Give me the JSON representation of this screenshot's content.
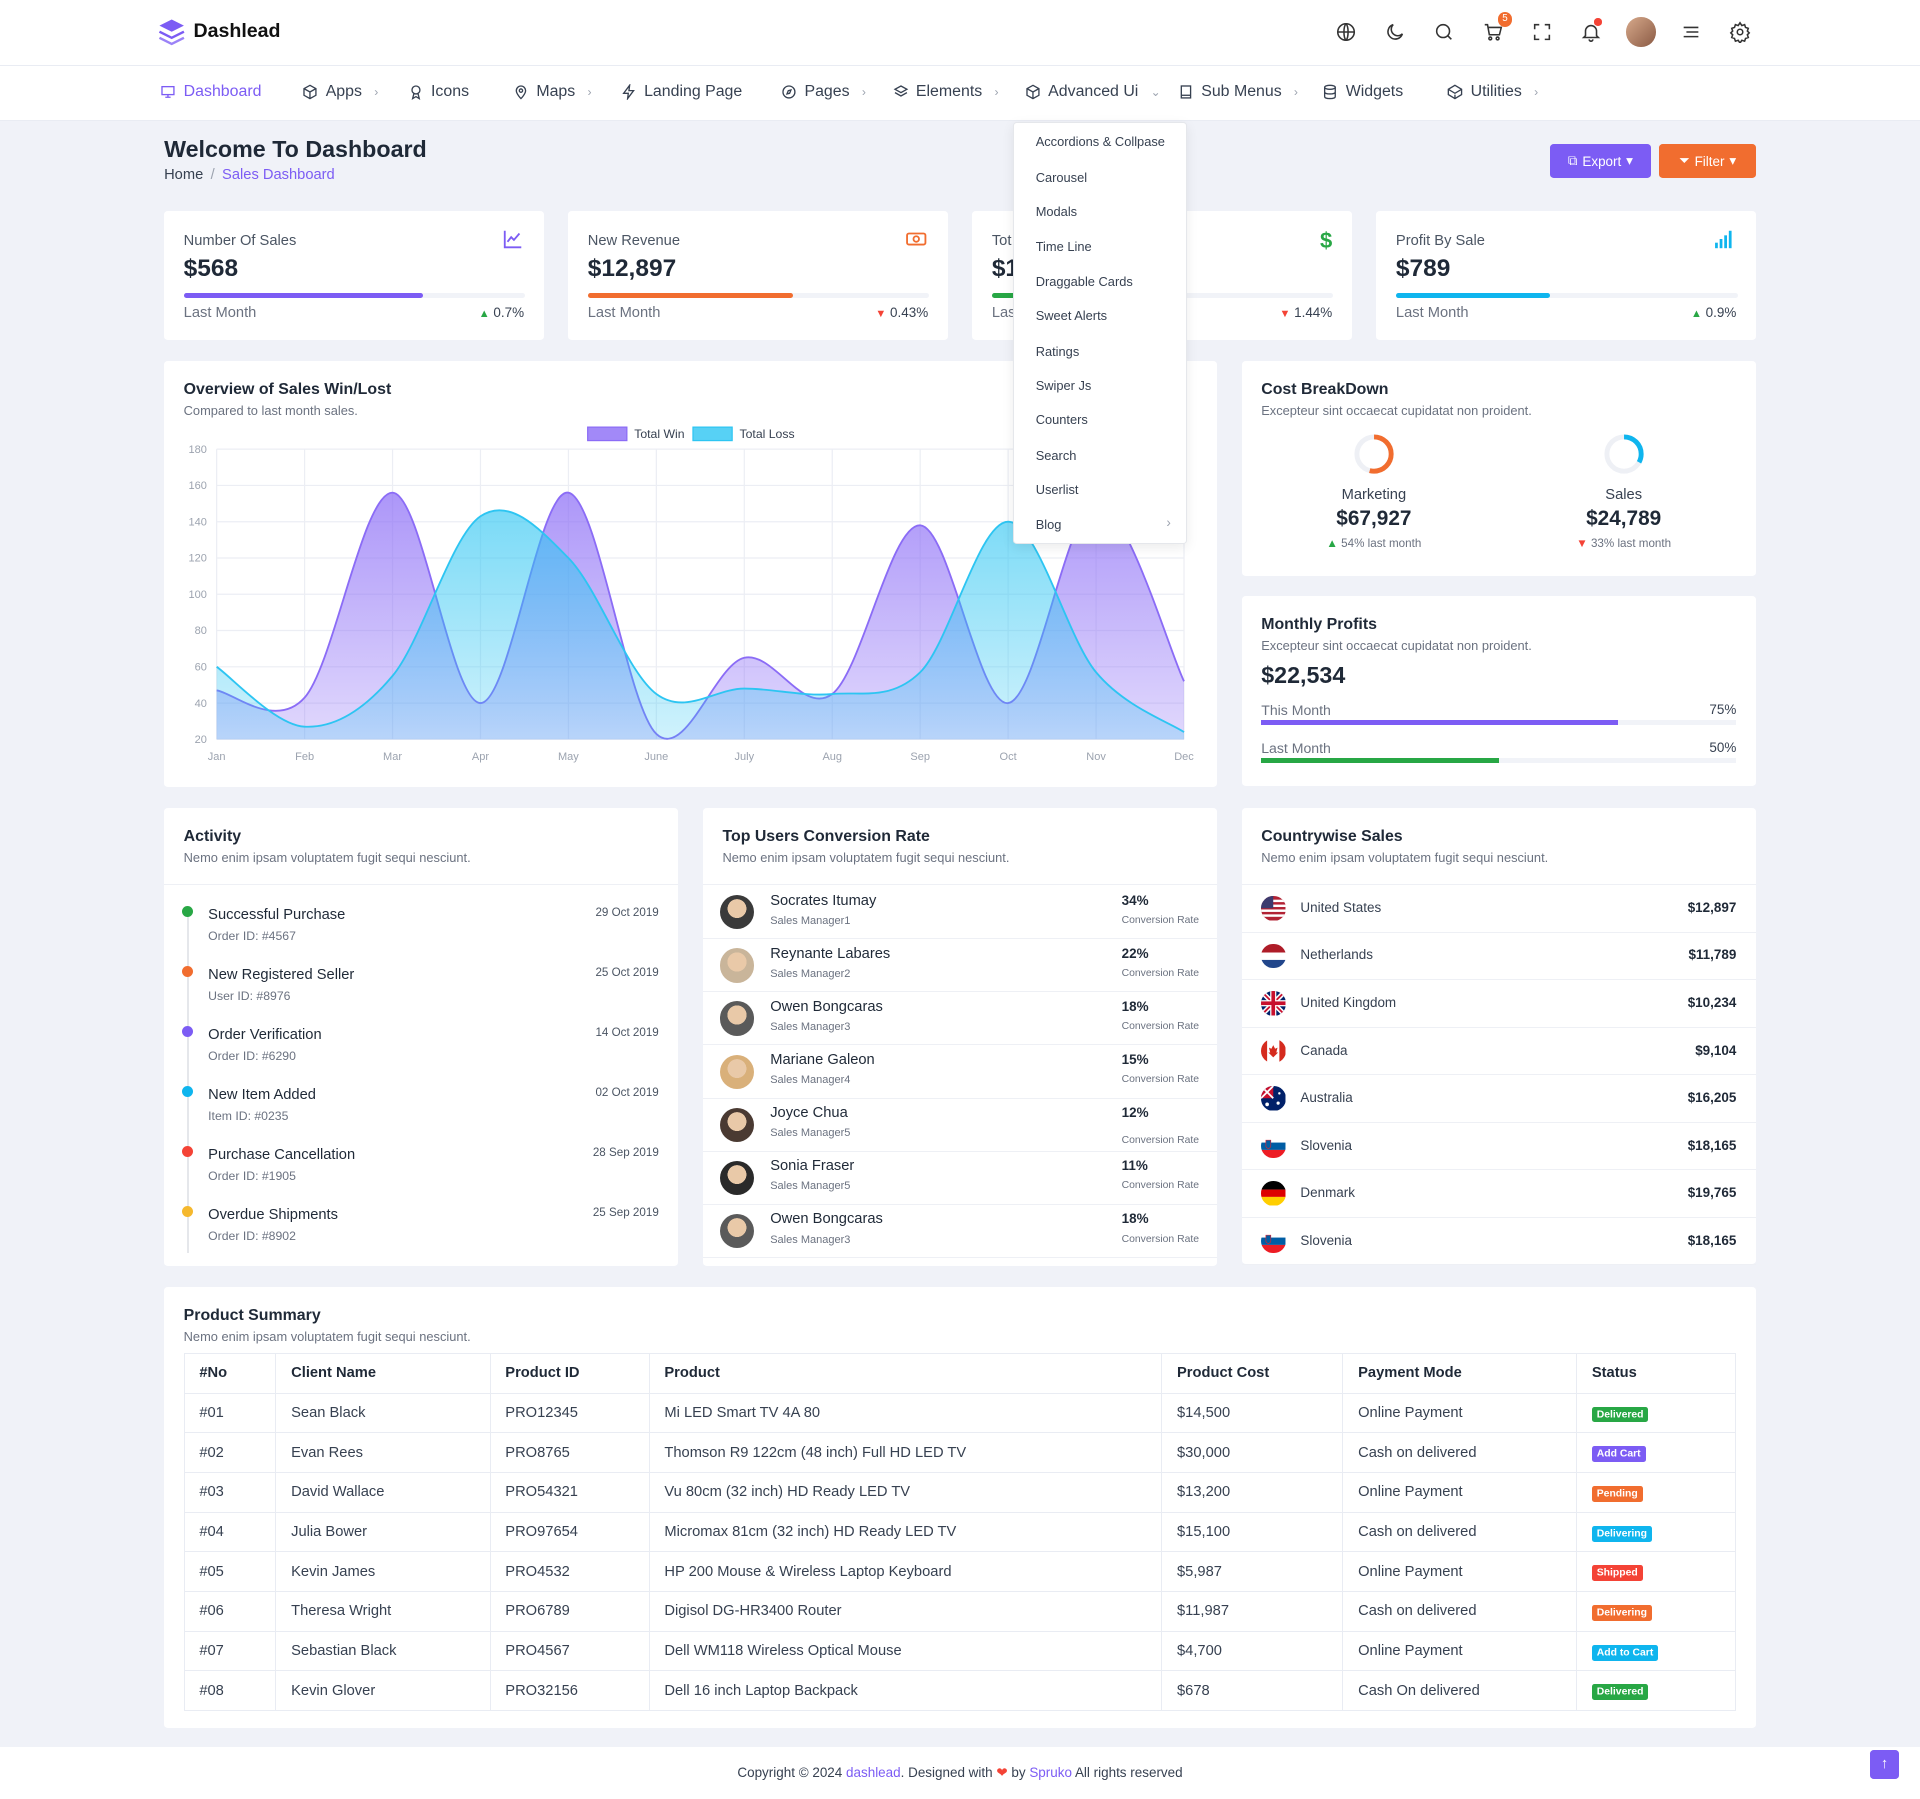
{
  "brand": {
    "name": "Dashlead",
    "accent": "#7c5cf4"
  },
  "header": {
    "cart_count": "5"
  },
  "nav": {
    "items": [
      {
        "label": "Dashboard",
        "icon": "monitor-icon",
        "chev": ""
      },
      {
        "label": "Apps",
        "icon": "box-icon",
        "chev": "›"
      },
      {
        "label": "Icons",
        "icon": "award-icon",
        "chev": ""
      },
      {
        "label": "Maps",
        "icon": "map-pin-icon",
        "chev": "›"
      },
      {
        "label": "Landing Page",
        "icon": "bolt-icon",
        "chev": ""
      },
      {
        "label": "Pages",
        "icon": "compass-icon",
        "chev": "›"
      },
      {
        "label": "Elements",
        "icon": "layers-icon",
        "chev": "›"
      },
      {
        "label": "Advanced Ui",
        "icon": "package-icon",
        "chev": "⌄"
      },
      {
        "label": "Sub Menus",
        "icon": "book-icon",
        "chev": "›"
      },
      {
        "label": "Widgets",
        "icon": "database-icon",
        "chev": ""
      },
      {
        "label": "Utilities",
        "icon": "codepen-icon",
        "chev": "›"
      }
    ]
  },
  "dropdown": {
    "items": [
      "Accordions & Collpase",
      "Carousel",
      "Modals",
      "Time Line",
      "Draggable Cards",
      "Sweet Alerts",
      "Ratings",
      "Swiper Js",
      "Counters",
      "Search",
      "Userlist",
      "Blog"
    ],
    "blog_chev": "›"
  },
  "page": {
    "title": "Welcome To Dashboard",
    "crumb_home": "Home",
    "crumb_sep": "/",
    "crumb_current": "Sales Dashboard",
    "export": "Export",
    "filter": "Filter"
  },
  "stats": [
    {
      "label": "Number Of Sales",
      "value": "$568",
      "foot": "Last Month",
      "change": "0.7%",
      "dir": "up",
      "progress": 0.7,
      "color": "#7c5cf4",
      "icon": "chart-line-icon"
    },
    {
      "label": "New Revenue",
      "value": "$12,897",
      "foot": "Last Month",
      "change": "0.43%",
      "dir": "down",
      "progress": 0.6,
      "color": "#f16d2f",
      "icon": "money-icon"
    },
    {
      "label": "Tot",
      "value": "$1",
      "foot": "Las",
      "change": "1.44%",
      "dir": "down",
      "progress": 0.08,
      "color": "#28a745",
      "icon": "dollar-icon"
    },
    {
      "label": "Profit By Sale",
      "value": "$789",
      "foot": "Last Month",
      "change": "0.9%",
      "dir": "up",
      "progress": 0.45,
      "color": "#0fb5ee",
      "icon": "signal-icon"
    }
  ],
  "overview": {
    "title": "Overview of Sales Win/Lost",
    "sub": "Compared to last month sales."
  },
  "chart_data": {
    "type": "area",
    "categories": [
      "Jan",
      "Feb",
      "Mar",
      "Apr",
      "May",
      "June",
      "July",
      "Aug",
      "Sep",
      "Oct",
      "Nov",
      "Dec"
    ],
    "series": [
      {
        "name": "Total Win",
        "values": [
          47,
          43,
          156,
          40,
          156,
          23,
          65,
          45,
          138,
          40,
          150,
          52
        ],
        "color": "#8b6cf6"
      },
      {
        "name": "Total Loss",
        "values": [
          60,
          27,
          55,
          143,
          120,
          45,
          48,
          45,
          57,
          140,
          57,
          24
        ],
        "color": "#2dc5f2"
      }
    ],
    "ylim": [
      20,
      180
    ],
    "yticks": [
      20,
      40,
      60,
      80,
      100,
      120,
      140,
      160,
      180
    ],
    "grid": true,
    "legend": "top"
  },
  "cost": {
    "title": "Cost BreakDown",
    "sub": "Excepteur sint occaecat cupidatat non proident.",
    "items": [
      {
        "label": "Marketing",
        "value": "$67,927",
        "change": "54% last month",
        "dir": "up",
        "pct": 0.54,
        "color": "#f16d2f"
      },
      {
        "label": "Sales",
        "value": "$24,789",
        "change": "33% last month",
        "dir": "down",
        "pct": 0.33,
        "color": "#0fb5ee"
      }
    ]
  },
  "profits": {
    "title": "Monthly Profits",
    "sub": "Excepteur sint occaecat cupidatat non proident.",
    "value": "$22,534",
    "rows": [
      {
        "label": "This Month",
        "pct": "75%",
        "fill": 0.75,
        "color": "#7c5cf4"
      },
      {
        "label": "Last Month",
        "pct": "50%",
        "fill": 0.5,
        "color": "#28a745"
      }
    ]
  },
  "activity": {
    "title": "Activity",
    "sub": "Nemo enim ipsam voluptatem fugit sequi nesciunt.",
    "items": [
      {
        "title": "Successful Purchase",
        "sub": "Order ID: #4567",
        "date": "29 Oct 2019",
        "color": "#28a745"
      },
      {
        "title": "New Registered Seller",
        "sub": "User ID: #8976",
        "date": "25 Oct 2019",
        "color": "#f16d2f"
      },
      {
        "title": "Order Verification",
        "sub": "Order ID: #6290",
        "date": "14 Oct 2019",
        "color": "#7c5cf4"
      },
      {
        "title": "New Item Added",
        "sub": "Item ID: #0235",
        "date": "02 Oct 2019",
        "color": "#0fb5ee"
      },
      {
        "title": "Purchase Cancellation",
        "sub": "Order ID: #1905",
        "date": "28 Sep 2019",
        "color": "#f44336"
      },
      {
        "title": "Overdue Shipments",
        "sub": "Order ID: #8902",
        "date": "25 Sep 2019",
        "color": "#f5b82e"
      }
    ]
  },
  "conversion": {
    "title": "Top Users Conversion Rate",
    "sub": "Nemo enim ipsam voluptatem fugit sequi nesciunt.",
    "rate_label": "Conversion Rate",
    "users": [
      {
        "name": "Socrates Itumay",
        "role": "Sales Manager1",
        "pct": "34%",
        "av": "#3a3a3a"
      },
      {
        "name": "Reynante Labares",
        "role": "Sales Manager2",
        "pct": "22%",
        "av": "#c9b59a"
      },
      {
        "name": "Owen Bongcaras",
        "role": "Sales Manager3",
        "pct": "18%",
        "av": "#5a5a5a"
      },
      {
        "name": "Mariane Galeon",
        "role": "Sales Manager4",
        "pct": "15%",
        "av": "#d9b07a"
      },
      {
        "name": "Joyce Chua",
        "role": "Sales Manager5",
        "pct": "12%",
        "av": "#4a3a32"
      },
      {
        "name": "Sonia Fraser",
        "role": "Sales Manager5",
        "pct": "11%",
        "av": "#2a2a2a"
      },
      {
        "name": "Owen Bongcaras",
        "role": "Sales Manager3",
        "pct": "18%",
        "av": "#5a5a5a"
      }
    ]
  },
  "countries": {
    "title": "Countrywise Sales",
    "sub": "Nemo enim ipsam voluptatem fugit sequi nesciunt.",
    "rows": [
      {
        "name": "United States",
        "value": "$12,897",
        "flag": "us"
      },
      {
        "name": "Netherlands",
        "value": "$11,789",
        "flag": "nl"
      },
      {
        "name": "United Kingdom",
        "value": "$10,234",
        "flag": "uk"
      },
      {
        "name": "Canada",
        "value": "$9,104",
        "flag": "ca"
      },
      {
        "name": "Australia",
        "value": "$16,205",
        "flag": "au"
      },
      {
        "name": "Slovenia",
        "value": "$18,165",
        "flag": "si"
      },
      {
        "name": "Denmark",
        "value": "$19,765",
        "flag": "de"
      },
      {
        "name": "Slovenia",
        "value": "$18,165",
        "flag": "si"
      }
    ]
  },
  "products": {
    "title": "Product Summary",
    "sub": "Nemo enim ipsam voluptatem fugit sequi nesciunt.",
    "headers": [
      "#No",
      "Client Name",
      "Product ID",
      "Product",
      "Product Cost",
      "Payment Mode",
      "Status"
    ],
    "rows": [
      [
        "#01",
        "Sean Black",
        "PRO12345",
        "Mi LED Smart TV 4A 80",
        "$14,500",
        "Online Payment",
        "Delivered"
      ],
      [
        "#02",
        "Evan Rees",
        "PRO8765",
        "Thomson R9 122cm (48 inch) Full HD LED TV",
        "$30,000",
        "Cash on delivered",
        "Add Cart"
      ],
      [
        "#03",
        "David Wallace",
        "PRO54321",
        "Vu 80cm (32 inch) HD Ready LED TV",
        "$13,200",
        "Online Payment",
        "Pending"
      ],
      [
        "#04",
        "Julia Bower",
        "PRO97654",
        "Micromax 81cm (32 inch) HD Ready LED TV",
        "$15,100",
        "Cash on delivered",
        "Delivering"
      ],
      [
        "#05",
        "Kevin James",
        "PRO4532",
        "HP 200 Mouse & Wireless Laptop Keyboard",
        "$5,987",
        "Online Payment",
        "Shipped"
      ],
      [
        "#06",
        "Theresa Wright",
        "PRO6789",
        "Digisol DG-HR3400 Router",
        "$11,987",
        "Cash on delivered",
        "Delivering"
      ],
      [
        "#07",
        "Sebastian Black",
        "PRO4567",
        "Dell WM118 Wireless Optical Mouse",
        "$4,700",
        "Online Payment",
        "Add to Cart"
      ],
      [
        "#08",
        "Kevin Glover",
        "PRO32156",
        "Dell 16 inch Laptop Backpack",
        "$678",
        "Cash On delivered",
        "Delivered"
      ]
    ],
    "status_colors": [
      "#28a745",
      "#7c5cf4",
      "#f16d2f",
      "#0fb5ee",
      "#f44336",
      "#f16d2f",
      "#0fb5ee",
      "#28a745"
    ]
  },
  "footer": {
    "pre": "Copyright © 2024 ",
    "brand": "dashlead",
    "mid": ". Designed with ",
    "heart": "❤",
    "by": " by ",
    "author": "Spruko",
    "post": " All rights reserved"
  }
}
